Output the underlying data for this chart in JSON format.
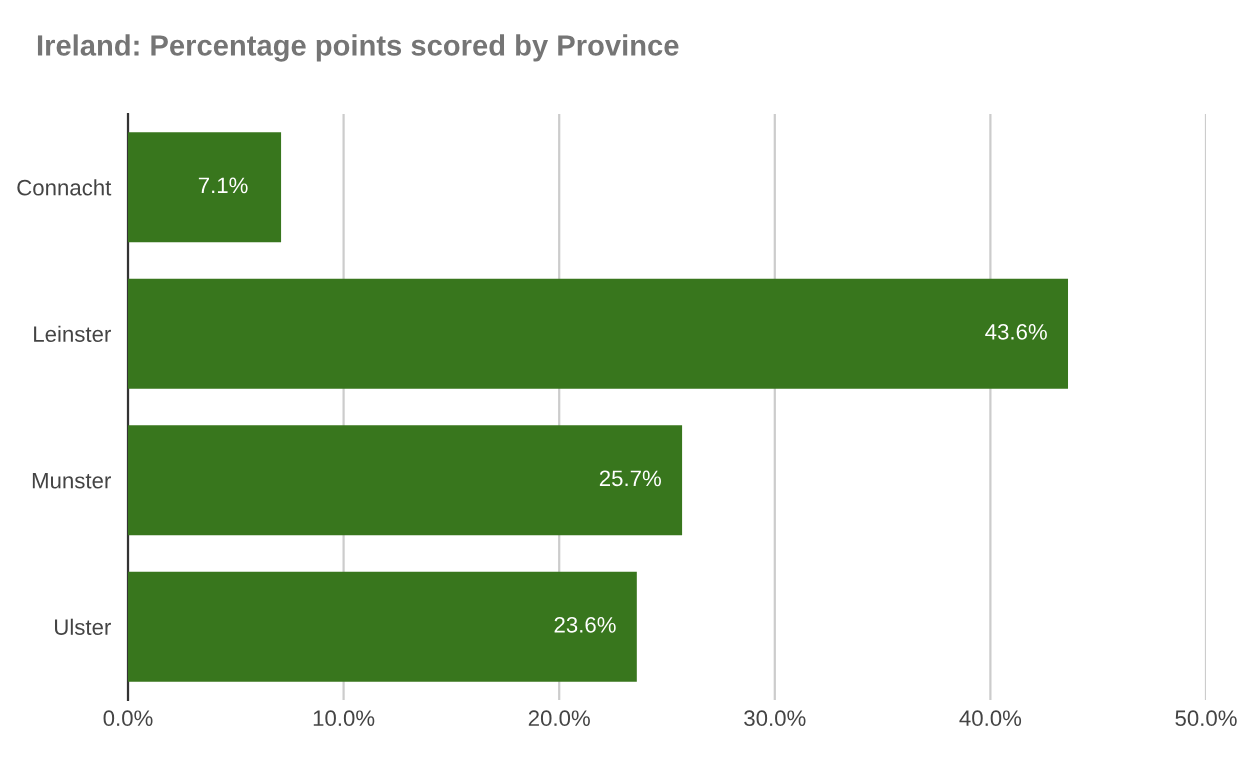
{
  "chart_data": {
    "type": "bar",
    "orientation": "horizontal",
    "title": "Ireland: Percentage points scored by Province",
    "categories": [
      "Connacht",
      "Leinster",
      "Munster",
      "Ulster"
    ],
    "values": [
      7.1,
      43.6,
      25.7,
      23.6
    ],
    "value_labels": [
      "7.1%",
      "43.6%",
      "25.7%",
      "23.6%"
    ],
    "color": "#38761d",
    "xlim": [
      0,
      50
    ],
    "xticks": [
      {
        "value": 0,
        "label": "0.0%"
      },
      {
        "value": 10,
        "label": "10.0%"
      },
      {
        "value": 20,
        "label": "20.0%"
      },
      {
        "value": 30,
        "label": "30.0%"
      },
      {
        "value": 40,
        "label": "40.0%"
      },
      {
        "value": 50,
        "label": "50.0%"
      }
    ],
    "grid": "x",
    "legend": false
  }
}
